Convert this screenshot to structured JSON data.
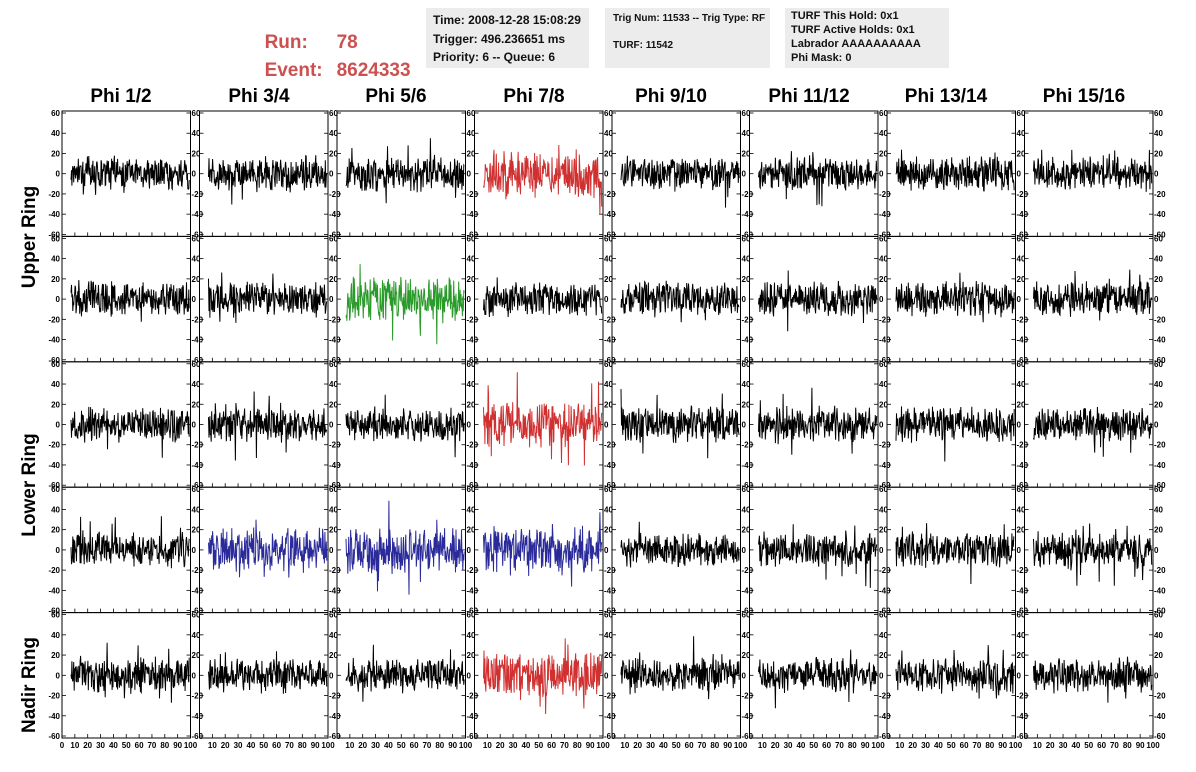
{
  "header": {
    "run_label": "Run:",
    "run_value": "78",
    "event_label": "Event:",
    "event_value": "8624333",
    "time": "Time: 2008-12-28 15:08:29",
    "trigger": "Trigger: 496.236651 ms",
    "priority": "Priority: 6 -- Queue: 6",
    "trig_num": "Trig Num: 11533 -- Trig Type: RF",
    "turf": "TURF: 11542",
    "turf_this_hold": "TURF This Hold: 0x1",
    "turf_active_holds": "TURF Active Holds: 0x1",
    "labrador": "Labrador AAAAAAAAAA",
    "phi_mask": "Phi Mask: 0"
  },
  "phi_labels": [
    "Phi 1/2",
    "Phi 3/4",
    "Phi 5/6",
    "Phi 7/8",
    "Phi 9/10",
    "Phi 11/12",
    "Phi 13/14",
    "Phi 15/16"
  ],
  "ring_labels": [
    "Upper Ring",
    "Lower Ring",
    "Nadir Ring"
  ],
  "colors": {
    "normal": "#000000",
    "red": "#d03030",
    "green": "#2a9a2a",
    "blue": "#2a2a9a",
    "title_red": "#cc5050",
    "info_bg": "#ececec"
  },
  "chart_data": {
    "type": "line",
    "rows": 5,
    "cols": 8,
    "xlim": [
      0,
      100
    ],
    "ylim": [
      -60,
      60
    ],
    "x_ticks": [
      0,
      10,
      20,
      30,
      40,
      50,
      60,
      70,
      80,
      90,
      100
    ],
    "y_ticks": [
      -60,
      -40,
      -20,
      0,
      20,
      40,
      60
    ],
    "samples_per_trace": 260,
    "highlighted_panels": [
      {
        "row": 0,
        "col": 3,
        "color": "red"
      },
      {
        "row": 1,
        "col": 2,
        "color": "green"
      },
      {
        "row": 2,
        "col": 3,
        "color": "red"
      },
      {
        "row": 3,
        "col": 1,
        "color": "blue"
      },
      {
        "row": 3,
        "col": 2,
        "color": "blue"
      },
      {
        "row": 3,
        "col": 3,
        "color": "blue"
      },
      {
        "row": 4,
        "col": 3,
        "color": "red"
      }
    ]
  }
}
